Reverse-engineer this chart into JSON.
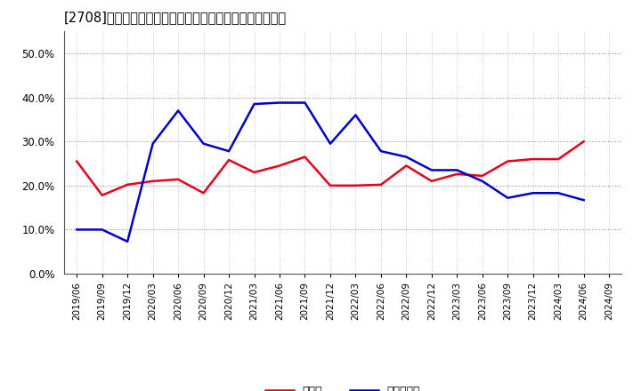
{
  "title": "[2708]　現顔金、有利子負債の総資産に対する比率の推移",
  "x_labels": [
    "2019/06",
    "2019/09",
    "2019/12",
    "2020/03",
    "2020/06",
    "2020/09",
    "2020/12",
    "2021/03",
    "2021/06",
    "2021/09",
    "2021/12",
    "2022/03",
    "2022/06",
    "2022/09",
    "2022/12",
    "2023/03",
    "2023/06",
    "2023/09",
    "2023/12",
    "2024/03",
    "2024/06",
    "2024/09"
  ],
  "cash": [
    0.255,
    0.178,
    0.202,
    0.21,
    0.214,
    0.183,
    0.258,
    0.23,
    0.245,
    0.265,
    0.2,
    0.2,
    0.202,
    0.245,
    0.21,
    0.226,
    0.222,
    0.255,
    0.26,
    0.26,
    0.3,
    null
  ],
  "debt": [
    0.1,
    0.1,
    0.073,
    0.295,
    0.37,
    0.295,
    0.278,
    0.385,
    0.388,
    0.388,
    0.295,
    0.36,
    0.278,
    0.265,
    0.235,
    0.235,
    0.21,
    0.172,
    0.183,
    0.183,
    0.167,
    null
  ],
  "cash_color": "#e8001c",
  "debt_color": "#0000cc",
  "bg_color": "#ffffff",
  "grid_color_h": "#888888",
  "grid_color_v": "#aaaaaa",
  "ylim": [
    0.0,
    0.55
  ],
  "yticks": [
    0.0,
    0.1,
    0.2,
    0.3,
    0.4,
    0.5
  ],
  "legend_cash": "現顔金",
  "legend_debt": "有利子負債"
}
